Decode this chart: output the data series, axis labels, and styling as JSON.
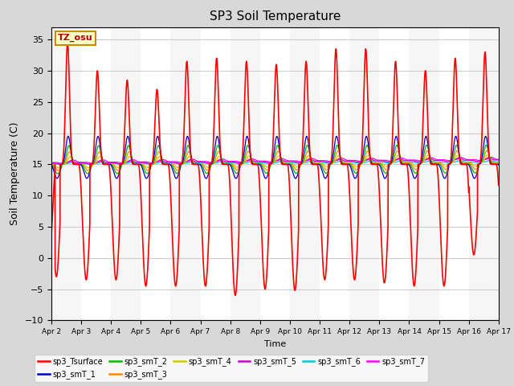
{
  "title": "SP3 Soil Temperature",
  "xlabel": "Time",
  "ylabel": "Soil Temperature (C)",
  "ylim": [
    -10,
    37
  ],
  "yticks": [
    -10,
    -5,
    0,
    5,
    10,
    15,
    20,
    25,
    30,
    35
  ],
  "xtick_labels": [
    "Apr 2",
    "Apr 3",
    "Apr 4",
    "Apr 5",
    "Apr 6",
    "Apr 7",
    "Apr 8",
    "Apr 9",
    "Apr 10",
    "Apr 11",
    "Apr 12",
    "Apr 13",
    "Apr 14",
    "Apr 15",
    "Apr 16",
    "Apr 17"
  ],
  "tz_label": "TZ_osu",
  "series_colors": {
    "sp3_Tsurface": "#ff0000",
    "sp3_smT_1": "#0000cc",
    "sp3_smT_2": "#00bb00",
    "sp3_smT_3": "#ff8800",
    "sp3_smT_4": "#cccc00",
    "sp3_smT_5": "#cc00cc",
    "sp3_smT_6": "#00cccc",
    "sp3_smT_7": "#ff00ff"
  },
  "background_color": "#d8d8d8",
  "plot_bg_color": "#ffffff",
  "grid_color": "#cccccc",
  "n_days": 15,
  "pts_per_day": 288,
  "surface_day_peaks": [
    34.5,
    30.0,
    28.5,
    27.0,
    31.5,
    32.0,
    31.5,
    31.0,
    31.5,
    33.5,
    33.5,
    31.5,
    30.0,
    32.0,
    33.0
  ],
  "surface_night_troughs": [
    -3.0,
    -3.5,
    -3.5,
    -4.5,
    -4.5,
    -4.5,
    -6.0,
    -5.0,
    -5.2,
    -3.5,
    -3.5,
    -4.0,
    -4.5,
    -4.5,
    0.5
  ],
  "subsurface_amps": [
    4.5,
    3.0,
    2.0,
    1.2,
    0.4,
    0.25,
    0.35
  ],
  "subsurface_base": 15.0,
  "subsurface_trend_end": [
    0.0,
    0.1,
    0.2,
    0.3,
    0.5,
    0.3,
    0.5
  ]
}
